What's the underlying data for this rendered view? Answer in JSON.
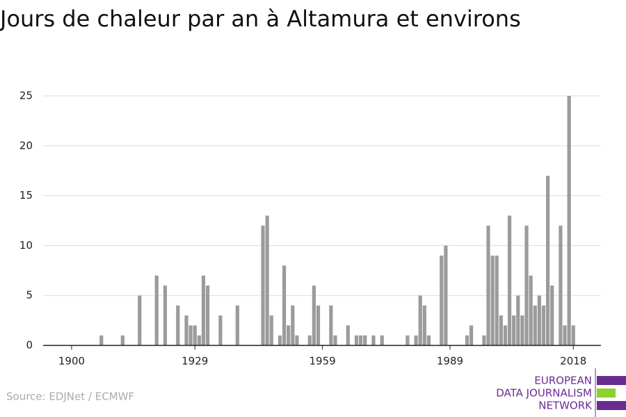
{
  "chart_data": {
    "type": "bar",
    "title": "Jours de chaleur par an à Altamura et environs",
    "source": "Source: EDJNet / ECMWF",
    "logo": [
      "EUROPEAN",
      "DATA JOURNALISM",
      "NETWORK"
    ],
    "color": "#9b9b9b",
    "x": [
      1907,
      1912,
      1916,
      1920,
      1922,
      1925,
      1927,
      1928,
      1929,
      1930,
      1931,
      1932,
      1935,
      1939,
      1945,
      1946,
      1947,
      1949,
      1950,
      1951,
      1952,
      1953,
      1956,
      1957,
      1958,
      1961,
      1962,
      1965,
      1967,
      1968,
      1969,
      1971,
      1973,
      1979,
      1981,
      1982,
      1983,
      1984,
      1987,
      1988,
      1993,
      1994,
      1997,
      1998,
      1999,
      2000,
      2001,
      2002,
      2003,
      2004,
      2005,
      2006,
      2007,
      2008,
      2009,
      2010,
      2011,
      2012,
      2013,
      2015,
      2016,
      2017,
      2018
    ],
    "values": [
      1,
      1,
      5,
      7,
      6,
      4,
      3,
      2,
      2,
      1,
      7,
      6,
      3,
      4,
      12,
      13,
      3,
      1,
      8,
      2,
      4,
      1,
      1,
      6,
      4,
      4,
      1,
      2,
      1,
      1,
      1,
      1,
      1,
      1,
      1,
      5,
      4,
      1,
      9,
      10,
      1,
      2,
      1,
      12,
      9,
      9,
      3,
      2,
      13,
      3,
      5,
      3,
      12,
      7,
      4,
      5,
      4,
      17,
      6,
      12,
      2,
      25,
      2
    ],
    "xlim": [
      1893.3,
      2024.5
    ],
    "xticks": [
      1900,
      1929,
      1959,
      1989,
      2018
    ],
    "ylim": [
      0,
      25
    ],
    "yticks": [
      0,
      5,
      10,
      15,
      20,
      25
    ],
    "grid": true
  }
}
